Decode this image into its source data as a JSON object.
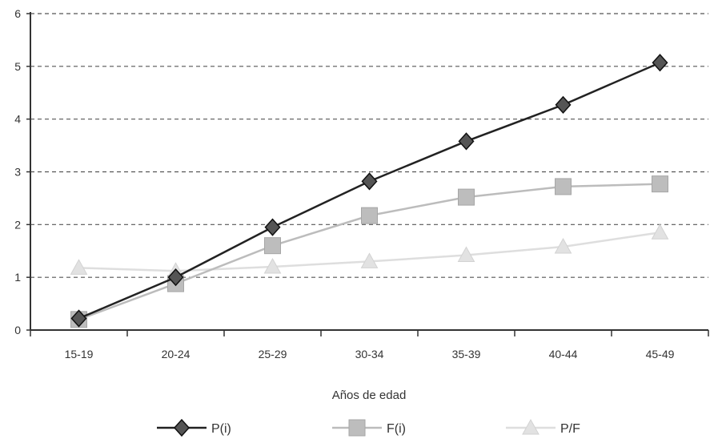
{
  "chart_data": {
    "type": "line",
    "title": "",
    "xlabel": "Años de edad",
    "ylabel": "",
    "categories": [
      "15-19",
      "20-24",
      "25-29",
      "30-34",
      "35-39",
      "40-44",
      "45-49"
    ],
    "ylim": [
      0,
      6
    ],
    "yticks": [
      "0",
      "1",
      "2",
      "3",
      "4",
      "5",
      "6"
    ],
    "grid": true,
    "legend_position": "bottom",
    "series": [
      {
        "name": "P(i)",
        "marker": "diamond",
        "color": "#2b2b2b",
        "values": [
          0.22,
          1.0,
          1.95,
          2.82,
          3.58,
          4.27,
          5.07
        ]
      },
      {
        "name": "F(i)",
        "marker": "square",
        "color": "#b9b9b9",
        "values": [
          0.2,
          0.88,
          1.6,
          2.17,
          2.52,
          2.72,
          2.77
        ]
      },
      {
        "name": "P/F",
        "marker": "triangle",
        "color": "#dcdcdc",
        "values": [
          1.18,
          1.12,
          1.2,
          1.3,
          1.42,
          1.58,
          1.85
        ]
      }
    ]
  }
}
